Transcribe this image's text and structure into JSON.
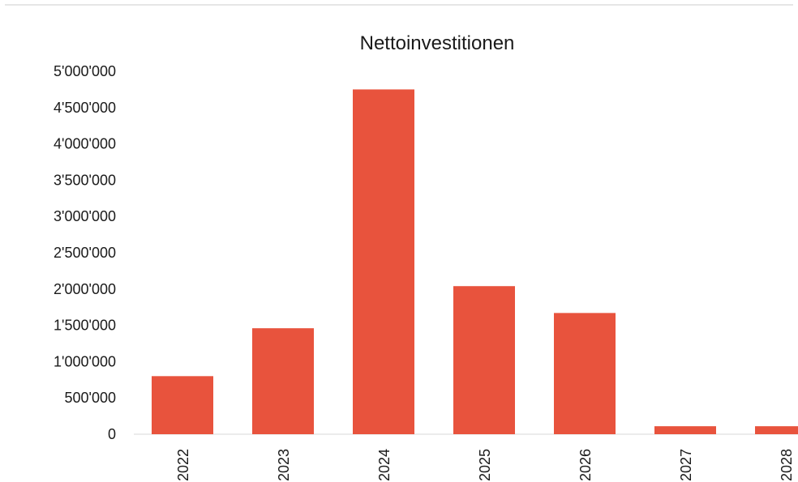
{
  "chart_data": {
    "type": "bar",
    "title": "Nettoinvestitionen",
    "categories": [
      "2022",
      "2023",
      "2024",
      "2025",
      "2026",
      "2027",
      "2028"
    ],
    "values": [
      800000,
      1460000,
      4750000,
      2040000,
      1670000,
      110000,
      110000
    ],
    "ylim": [
      0,
      5000000
    ],
    "yticks": [
      {
        "value": 0,
        "label": "0"
      },
      {
        "value": 500000,
        "label": "500'000"
      },
      {
        "value": 1000000,
        "label": "1'000'000"
      },
      {
        "value": 1500000,
        "label": "1'500'000"
      },
      {
        "value": 2000000,
        "label": "2'000'000"
      },
      {
        "value": 2500000,
        "label": "2'500'000"
      },
      {
        "value": 3000000,
        "label": "3'000'000"
      },
      {
        "value": 3500000,
        "label": "3'500'000"
      },
      {
        "value": 4000000,
        "label": "4'000'000"
      },
      {
        "value": 4500000,
        "label": "4'500'000"
      },
      {
        "value": 5000000,
        "label": "5'000'000"
      }
    ],
    "grid": false,
    "legend": "none",
    "bar_color": "#e8533d"
  }
}
